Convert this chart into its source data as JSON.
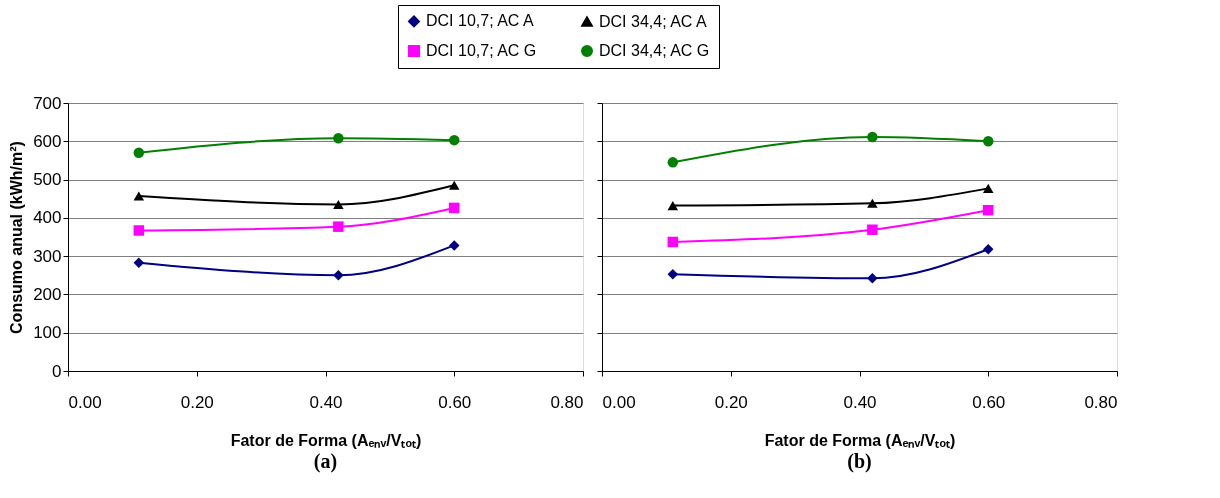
{
  "chart_data": [
    {
      "type": "line",
      "title": "(a)",
      "xlabel": "Fator de Forma (Aₑₙᵥ/Vₜₒₜ)",
      "ylabel": "Consumo anual (kWh/m²)",
      "x": [
        0.11,
        0.42,
        0.6
      ],
      "series": [
        {
          "name": "DCI 10,7; AC A",
          "color": "#000080",
          "marker": "diamond",
          "values": [
            283,
            250,
            328
          ]
        },
        {
          "name": "DCI 34,4; AC A",
          "color": "#000000",
          "marker": "triangle",
          "values": [
            457,
            435,
            485
          ]
        },
        {
          "name": "DCI 10,7; AC G",
          "color": "#ff00ff",
          "marker": "square",
          "values": [
            367,
            377,
            426
          ]
        },
        {
          "name": "DCI 34,4; AC G",
          "color": "#008000",
          "marker": "circle",
          "values": [
            570,
            608,
            603
          ]
        }
      ],
      "xlim": [
        0,
        0.8
      ],
      "xticks": [
        {
          "value": 0,
          "label": "0.00"
        },
        {
          "value": 0.2,
          "label": "0.20"
        },
        {
          "value": 0.4,
          "label": "0.40"
        },
        {
          "value": 0.6,
          "label": "0.60"
        },
        {
          "value": 0.8,
          "label": "0.80"
        }
      ],
      "ylim": [
        0,
        700
      ],
      "yticks": [
        0,
        100,
        200,
        300,
        400,
        500,
        600,
        700
      ],
      "grid": "y",
      "legend": "top"
    },
    {
      "type": "line",
      "title": "(b)",
      "xlabel": "Fator de Forma (Aₑₙᵥ/Vₜₒₜ)",
      "x": [
        0.11,
        0.42,
        0.6
      ],
      "series": [
        {
          "name": "DCI 10,7; AC A",
          "color": "#000080",
          "marker": "diamond",
          "values": [
            253,
            242,
            318
          ]
        },
        {
          "name": "DCI 34,4; AC A",
          "color": "#000000",
          "marker": "triangle",
          "values": [
            432,
            438,
            477
          ]
        },
        {
          "name": "DCI 10,7; AC G",
          "color": "#ff00ff",
          "marker": "square",
          "values": [
            337,
            369,
            420
          ]
        },
        {
          "name": "DCI 34,4; AC G",
          "color": "#008000",
          "marker": "circle",
          "values": [
            545,
            611,
            600
          ]
        }
      ],
      "xlim": [
        0,
        0.8
      ],
      "xticks": [
        {
          "value": 0,
          "label": "0.00"
        },
        {
          "value": 0.2,
          "label": "0.20"
        },
        {
          "value": 0.4,
          "label": "0.40"
        },
        {
          "value": 0.6,
          "label": "0.60"
        },
        {
          "value": 0.8,
          "label": "0.80"
        }
      ],
      "ylim": [
        0,
        700
      ],
      "yticks": [
        0,
        100,
        200,
        300,
        400,
        500,
        600,
        700
      ],
      "grid": "y",
      "tick_labels": "x"
    }
  ]
}
